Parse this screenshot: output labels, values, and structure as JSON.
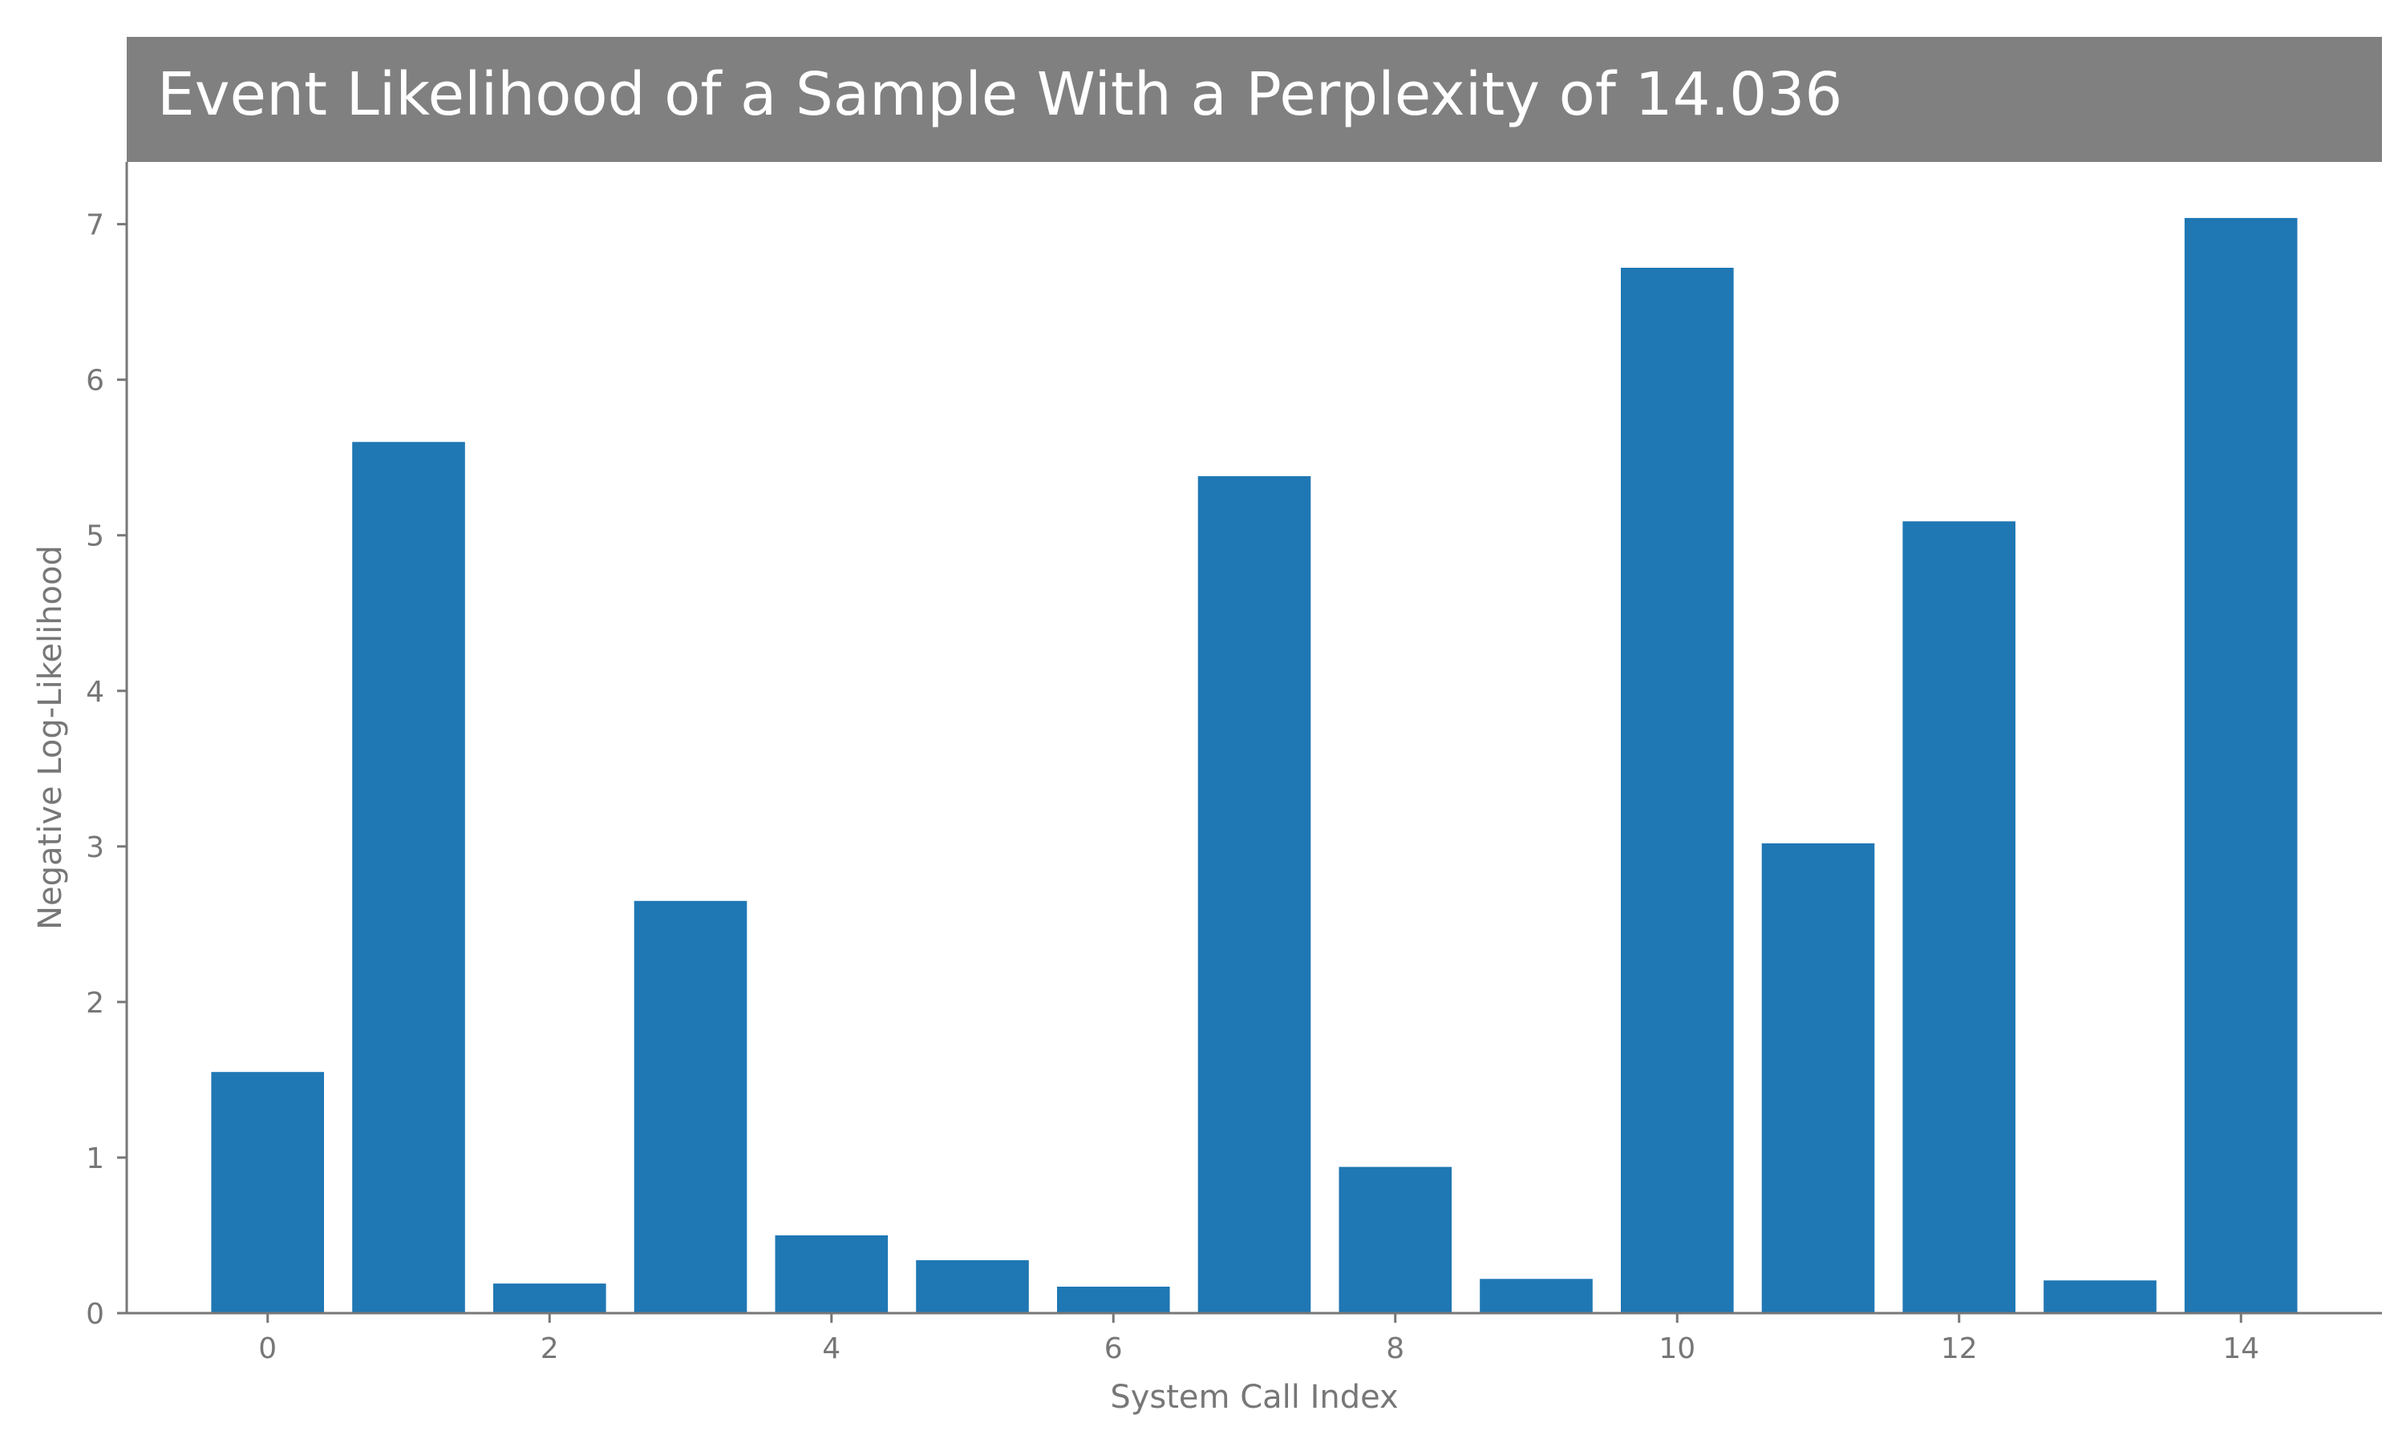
{
  "chart_data": {
    "type": "bar",
    "title": "Event Likelihood of a Sample With a Perplexity of 14.036",
    "xlabel": "System Call Index",
    "ylabel": "Negative Log-Likelihood",
    "x": [
      0,
      1,
      2,
      3,
      4,
      5,
      6,
      7,
      8,
      9,
      10,
      11,
      12,
      13,
      14
    ],
    "values": [
      1.55,
      5.6,
      0.19,
      2.65,
      0.5,
      0.34,
      0.17,
      5.38,
      0.94,
      0.22,
      6.72,
      3.02,
      5.09,
      0.21,
      7.04
    ],
    "xticks": [
      0,
      2,
      4,
      6,
      8,
      10,
      12,
      14
    ],
    "yticks": [
      0,
      1,
      2,
      3,
      4,
      5,
      6,
      7
    ],
    "xlim": [
      -1,
      15
    ],
    "ylim": [
      0,
      7.4
    ],
    "grid": false,
    "colors": {
      "bar": "#1f77b4",
      "title_background": "#808080",
      "title_text": "#ffffff",
      "axis": "#777777"
    }
  }
}
